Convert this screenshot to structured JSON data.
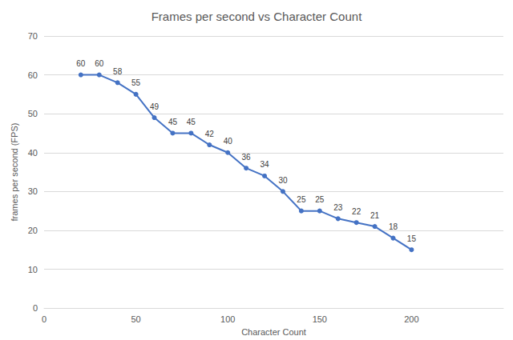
{
  "chart_data": {
    "type": "line",
    "title": "Frames per second vs Character Count",
    "x_label": "Character Count",
    "y_label": "frames per second (FPS)",
    "x": [
      20,
      30,
      40,
      50,
      60,
      70,
      80,
      90,
      100,
      110,
      120,
      130,
      140,
      150,
      160,
      170,
      180,
      190,
      200
    ],
    "values": [
      60,
      60,
      58,
      55,
      49,
      45,
      45,
      42,
      40,
      36,
      34,
      30,
      25,
      25,
      23,
      22,
      21,
      18,
      15
    ],
    "color": "#4472c4",
    "marker": "circle",
    "data_labels": true,
    "xlim": [
      0,
      250
    ],
    "xticks": [
      0,
      50,
      100,
      150,
      200
    ],
    "ylim": [
      0,
      70
    ],
    "yticks": [
      0,
      10,
      20,
      30,
      40,
      50,
      60,
      70
    ],
    "grid": true
  }
}
